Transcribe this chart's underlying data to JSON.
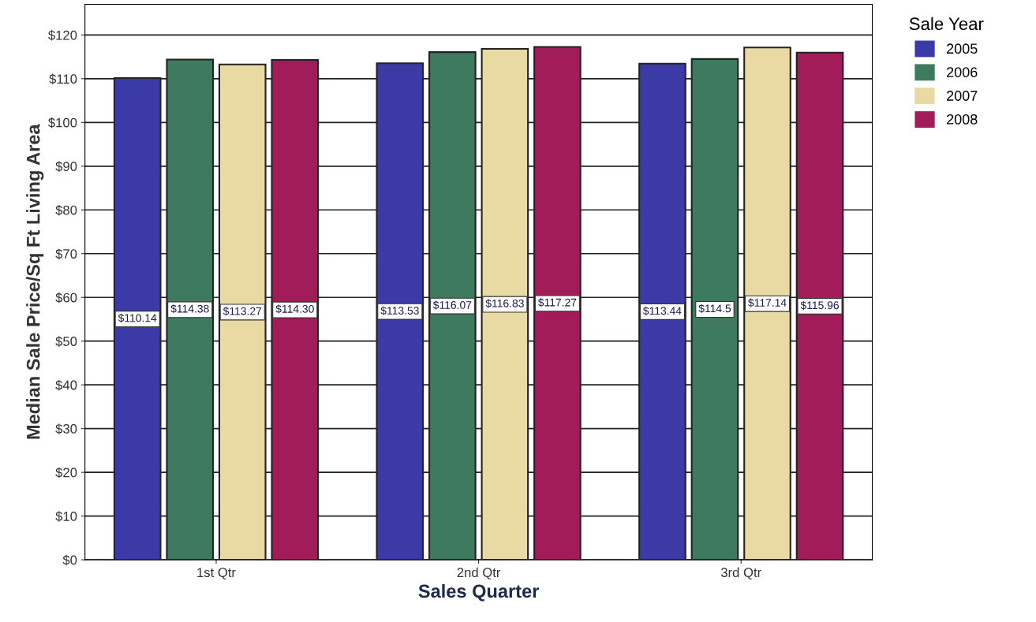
{
  "chart_data": {
    "type": "bar",
    "xlabel": "Sales Quarter",
    "ylabel": "Median Sale Price/Sq Ft Living Area",
    "legend_title": "Sale Year",
    "categories": [
      "1st Qtr",
      "2nd Qtr",
      "3rd Qtr"
    ],
    "series": [
      {
        "name": "2005",
        "color": "#3b3aa6",
        "values": [
          110.14,
          113.53,
          113.44
        ],
        "value_labels": [
          "$110.14",
          "$113.53",
          "$113.44"
        ]
      },
      {
        "name": "2006",
        "color": "#3e7a5f",
        "values": [
          114.38,
          116.07,
          114.5
        ],
        "value_labels": [
          "$114.38",
          "$116.07",
          "$114.5"
        ]
      },
      {
        "name": "2007",
        "color": "#e9d9a2",
        "values": [
          113.27,
          116.83,
          117.14
        ],
        "value_labels": [
          "$113.27",
          "$116.83",
          "$117.14"
        ]
      },
      {
        "name": "2008",
        "color": "#a11c58",
        "values": [
          114.3,
          117.27,
          115.96
        ],
        "value_labels": [
          "$114.30",
          "$117.27",
          "$115.96"
        ]
      }
    ],
    "ylim": [
      0,
      127
    ],
    "yticks": [
      {
        "value": 0,
        "label": "$0"
      },
      {
        "value": 10,
        "label": "$10"
      },
      {
        "value": 20,
        "label": "$20"
      },
      {
        "value": 30,
        "label": "$30"
      },
      {
        "value": 40,
        "label": "$40"
      },
      {
        "value": 50,
        "label": "$50"
      },
      {
        "value": 60,
        "label": "$60"
      },
      {
        "value": 70,
        "label": "$70"
      },
      {
        "value": 80,
        "label": "$80"
      },
      {
        "value": 90,
        "label": "$90"
      },
      {
        "value": 100,
        "label": "$100"
      },
      {
        "value": 110,
        "label": "$110"
      },
      {
        "value": 120,
        "label": "$120"
      }
    ],
    "grid": "y",
    "legend": "top right"
  }
}
